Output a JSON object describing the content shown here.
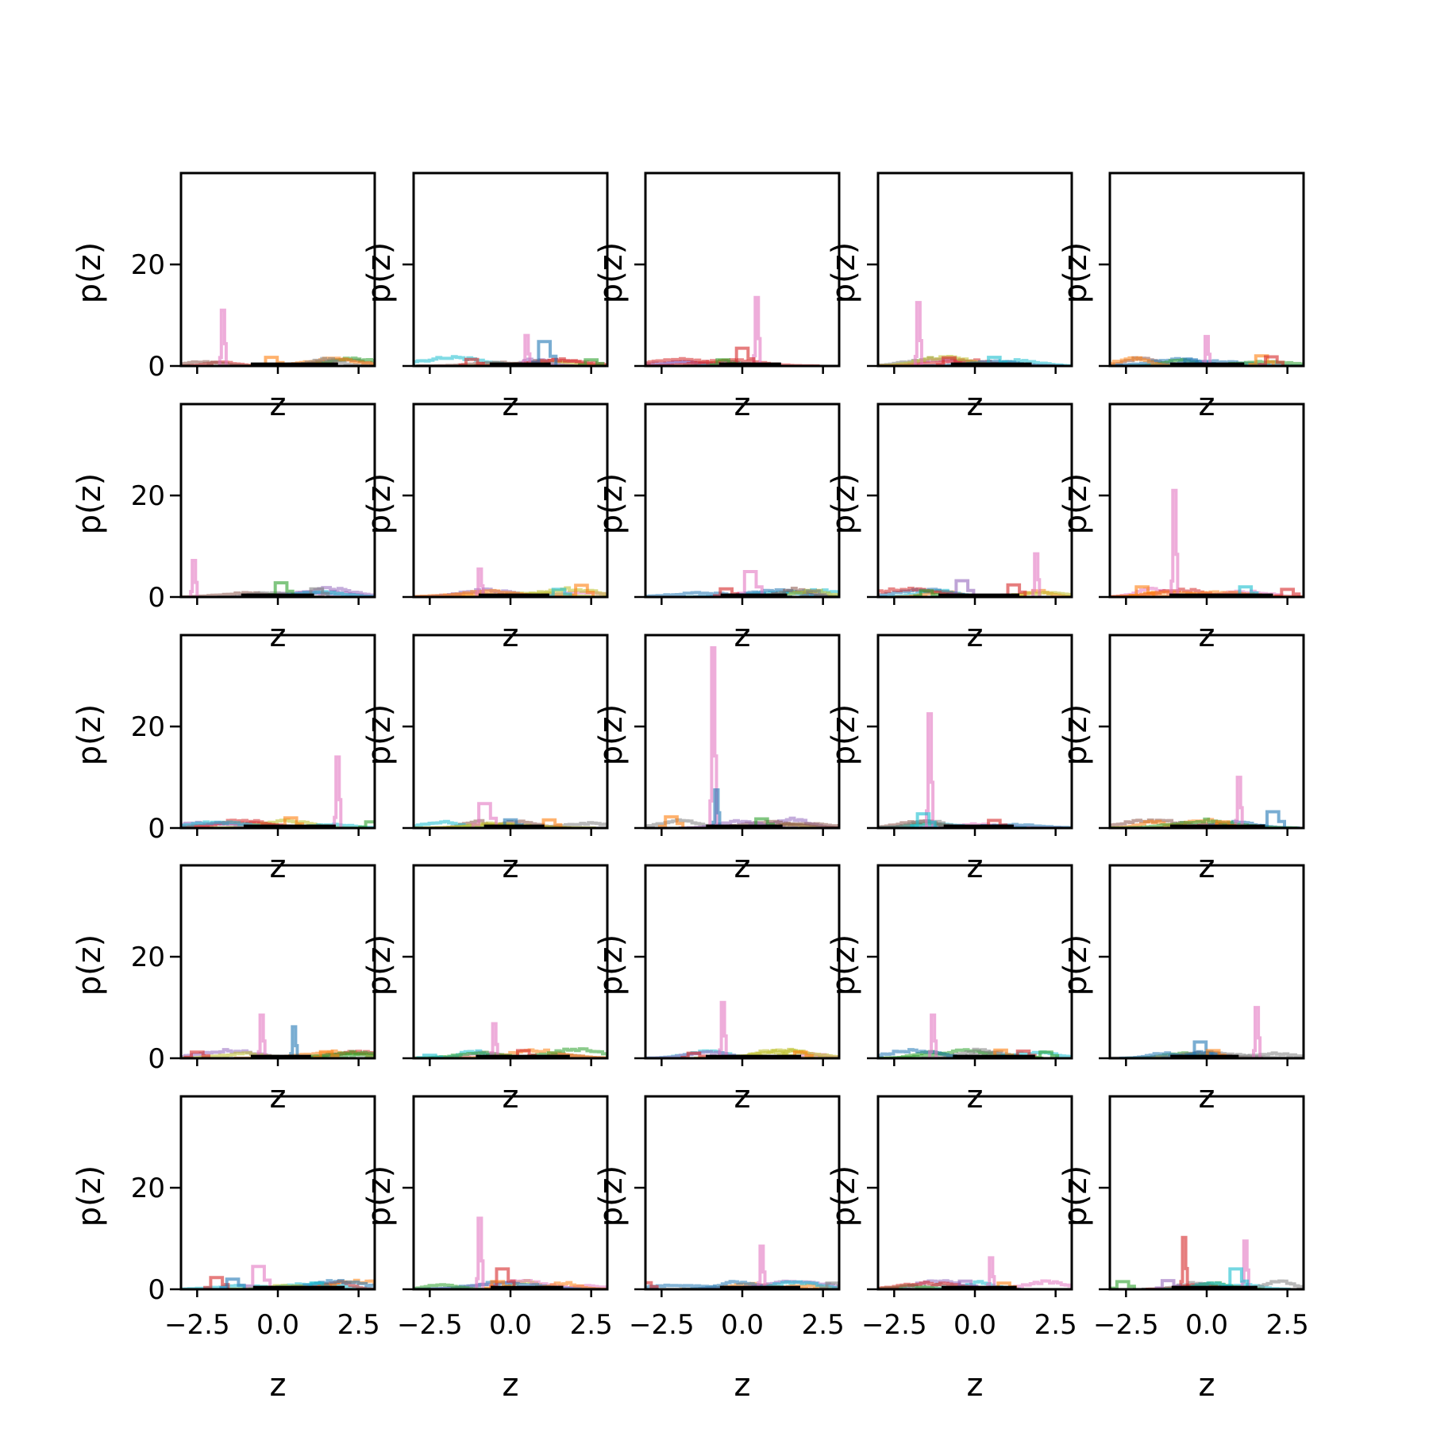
{
  "chart_data": {
    "type": "line",
    "layout": "5x5 grid of panels",
    "x_label": "z",
    "y_label": "p(z)",
    "xlim": [
      -3,
      3
    ],
    "ylim": [
      0,
      38
    ],
    "x_ticks": [
      -2.5,
      0.0,
      2.5
    ],
    "x_tick_labels": [
      "−2.5",
      "0.0",
      "2.5"
    ],
    "y_ticks": [
      0,
      20
    ],
    "y_tick_labels": [
      "0",
      "20"
    ],
    "grid": false,
    "legend": "none",
    "palette": [
      "#1f77b4",
      "#ff7f0e",
      "#2ca02c",
      "#d62728",
      "#9467bd",
      "#8c564b",
      "#e377c2",
      "#7f7f7f",
      "#bcbd22",
      "#17becf",
      "#000000"
    ],
    "panels": [
      {
        "peaks": [
          {
            "x": -1.7,
            "y": 11,
            "c": "#e377c2"
          },
          {
            "x": -0.2,
            "y": 1.7,
            "c": "#ff7f0e"
          }
        ]
      },
      {
        "peaks": [
          {
            "x": 0.5,
            "y": 6,
            "c": "#e377c2"
          },
          {
            "x": 1.05,
            "y": 4.8,
            "c": "#1f77b4"
          },
          {
            "x": -1.2,
            "y": 1.3,
            "c": "#d62728"
          },
          {
            "x": 2.5,
            "y": 1.2,
            "c": "#2ca02c"
          }
        ]
      },
      {
        "peaks": [
          {
            "x": 0.45,
            "y": 13.5,
            "c": "#e377c2"
          },
          {
            "x": 0.0,
            "y": 3.5,
            "c": "#d62728"
          },
          {
            "x": -0.6,
            "y": 1.2,
            "c": "#2ca02c"
          }
        ]
      },
      {
        "peaks": [
          {
            "x": -1.75,
            "y": 12.5,
            "c": "#e377c2"
          },
          {
            "x": 0.6,
            "y": 1.7,
            "c": "#17becf"
          },
          {
            "x": -0.8,
            "y": 1.6,
            "c": "#d62728"
          }
        ]
      },
      {
        "peaks": [
          {
            "x": 0.0,
            "y": 5.8,
            "c": "#e377c2"
          },
          {
            "x": 1.7,
            "y": 2.0,
            "c": "#ff7f0e"
          },
          {
            "x": 2.0,
            "y": 1.8,
            "c": "#d62728"
          },
          {
            "x": -0.5,
            "y": 1.2,
            "c": "#1f77b4"
          }
        ]
      },
      {
        "peaks": [
          {
            "x": -2.6,
            "y": 7.2,
            "c": "#e377c2"
          },
          {
            "x": 0.1,
            "y": 2.8,
            "c": "#2ca02c"
          },
          {
            "x": 1.2,
            "y": 1.6,
            "c": "#7f7f7f"
          }
        ]
      },
      {
        "peaks": [
          {
            "x": -0.95,
            "y": 5.5,
            "c": "#e377c2"
          },
          {
            "x": 2.2,
            "y": 2.3,
            "c": "#ff7f0e"
          },
          {
            "x": 1.5,
            "y": 1.5,
            "c": "#17becf"
          }
        ]
      },
      {
        "peaks": [
          {
            "x": 0.25,
            "y": 5,
            "c": "#e377c2"
          },
          {
            "x": -0.5,
            "y": 1.6,
            "c": "#d62728"
          },
          {
            "x": 2.2,
            "y": 1.2,
            "c": "#7f7f7f"
          }
        ]
      },
      {
        "peaks": [
          {
            "x": 1.9,
            "y": 8.5,
            "c": "#e377c2"
          },
          {
            "x": -0.4,
            "y": 3.2,
            "c": "#9467bd"
          },
          {
            "x": 1.2,
            "y": 2.4,
            "c": "#d62728"
          },
          {
            "x": -1.5,
            "y": 1.2,
            "c": "#2ca02c"
          }
        ]
      },
      {
        "peaks": [
          {
            "x": -1.0,
            "y": 21,
            "c": "#e377c2"
          },
          {
            "x": 1.2,
            "y": 2.0,
            "c": "#17becf"
          },
          {
            "x": -2.0,
            "y": 2.0,
            "c": "#ff7f0e"
          },
          {
            "x": 2.5,
            "y": 1.5,
            "c": "#d62728"
          }
        ]
      },
      {
        "peaks": [
          {
            "x": 1.85,
            "y": 14,
            "c": "#e377c2"
          },
          {
            "x": 0.4,
            "y": 2.0,
            "c": "#ff7f0e"
          },
          {
            "x": 2.9,
            "y": 1.2,
            "c": "#2ca02c"
          }
        ]
      },
      {
        "peaks": [
          {
            "x": -0.8,
            "y": 4.8,
            "c": "#e377c2"
          },
          {
            "x": 0.0,
            "y": 1.6,
            "c": "#1f77b4"
          },
          {
            "x": 1.2,
            "y": 1.6,
            "c": "#ff7f0e"
          }
        ]
      },
      {
        "peaks": [
          {
            "x": -0.9,
            "y": 35.5,
            "c": "#e377c2"
          },
          {
            "x": -0.8,
            "y": 7.5,
            "c": "#1f77b4"
          },
          {
            "x": -2.2,
            "y": 2.2,
            "c": "#ff7f0e"
          },
          {
            "x": 0.6,
            "y": 1.8,
            "c": "#2ca02c"
          }
        ]
      },
      {
        "peaks": [
          {
            "x": -1.4,
            "y": 22.5,
            "c": "#e377c2"
          },
          {
            "x": -1.6,
            "y": 2.8,
            "c": "#17becf"
          },
          {
            "x": 0.6,
            "y": 1.5,
            "c": "#d62728"
          }
        ]
      },
      {
        "peaks": [
          {
            "x": 1.0,
            "y": 10,
            "c": "#e377c2"
          },
          {
            "x": 2.05,
            "y": 3.2,
            "c": "#1f77b4"
          },
          {
            "x": 0.5,
            "y": 1.2,
            "c": "#ff7f0e"
          }
        ]
      },
      {
        "peaks": [
          {
            "x": -0.5,
            "y": 8.5,
            "c": "#e377c2"
          },
          {
            "x": 0.5,
            "y": 6.2,
            "c": "#1f77b4"
          },
          {
            "x": 1.5,
            "y": 1.3,
            "c": "#ff7f0e"
          },
          {
            "x": -2.5,
            "y": 1.2,
            "c": "#d62728"
          }
        ]
      },
      {
        "peaks": [
          {
            "x": -0.5,
            "y": 6.8,
            "c": "#e377c2"
          },
          {
            "x": 0.4,
            "y": 1.5,
            "c": "#d62728"
          },
          {
            "x": -2.5,
            "y": 0.6,
            "c": "#17becf"
          }
        ]
      },
      {
        "peaks": [
          {
            "x": -0.6,
            "y": 11,
            "c": "#e377c2"
          },
          {
            "x": 1.8,
            "y": 1.2,
            "c": "#ff7f0e"
          },
          {
            "x": -1.5,
            "y": 1.0,
            "c": "#d62728"
          }
        ]
      },
      {
        "peaks": [
          {
            "x": -1.3,
            "y": 8.5,
            "c": "#e377c2"
          },
          {
            "x": 0.8,
            "y": 1.6,
            "c": "#ff7f0e"
          },
          {
            "x": 1.5,
            "y": 1.4,
            "c": "#d62728"
          },
          {
            "x": 2.2,
            "y": 1.2,
            "c": "#2ca02c"
          }
        ]
      },
      {
        "peaks": [
          {
            "x": 1.55,
            "y": 10,
            "c": "#e377c2"
          },
          {
            "x": -0.2,
            "y": 3.2,
            "c": "#1f77b4"
          },
          {
            "x": 0.2,
            "y": 1.5,
            "c": "#ff7f0e"
          }
        ]
      },
      {
        "peaks": [
          {
            "x": -0.6,
            "y": 4.5,
            "c": "#e377c2"
          },
          {
            "x": -1.9,
            "y": 2.3,
            "c": "#d62728"
          },
          {
            "x": -1.4,
            "y": 2.0,
            "c": "#1f77b4"
          },
          {
            "x": 1.2,
            "y": 1.2,
            "c": "#17becf"
          }
        ]
      },
      {
        "peaks": [
          {
            "x": -0.95,
            "y": 14,
            "c": "#e377c2"
          },
          {
            "x": -0.25,
            "y": 4.0,
            "c": "#d62728"
          },
          {
            "x": -0.4,
            "y": 1.5,
            "c": "#ff7f0e"
          }
        ]
      },
      {
        "peaks": [
          {
            "x": 0.6,
            "y": 8.5,
            "c": "#e377c2"
          },
          {
            "x": -3.0,
            "y": 1.3,
            "c": "#d62728"
          },
          {
            "x": 2.8,
            "y": 1.2,
            "c": "#7f7f7f"
          }
        ]
      },
      {
        "peaks": [
          {
            "x": 0.5,
            "y": 6.2,
            "c": "#e377c2"
          },
          {
            "x": -0.3,
            "y": 1.6,
            "c": "#9467bd"
          },
          {
            "x": 0.9,
            "y": 1.2,
            "c": "#ff7f0e"
          }
        ]
      },
      {
        "peaks": [
          {
            "x": -0.7,
            "y": 10.2,
            "c": "#d62728"
          },
          {
            "x": 1.2,
            "y": 9.5,
            "c": "#e377c2"
          },
          {
            "x": 0.9,
            "y": 4.0,
            "c": "#17becf"
          },
          {
            "x": -1.2,
            "y": 1.7,
            "c": "#9467bd"
          },
          {
            "x": -2.6,
            "y": 1.5,
            "c": "#2ca02c"
          }
        ]
      }
    ]
  }
}
